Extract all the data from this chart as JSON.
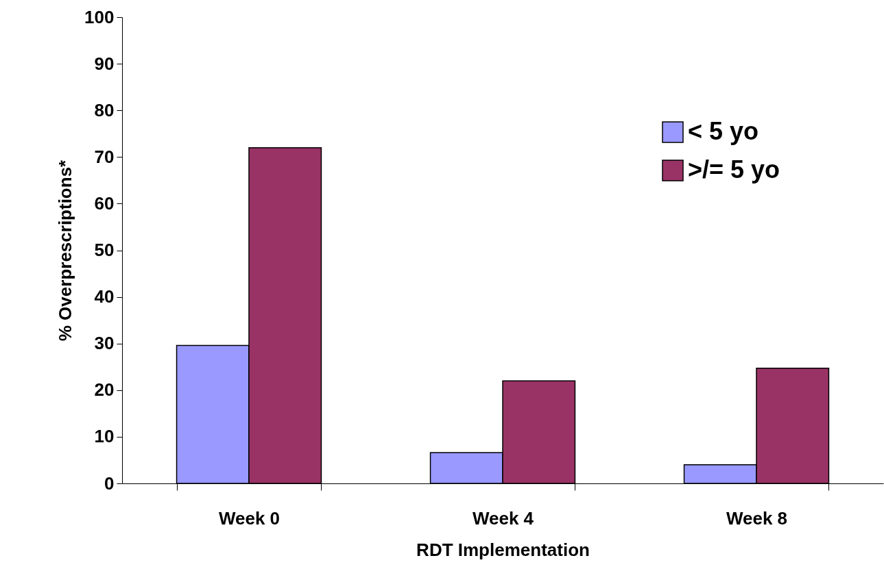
{
  "chart_data": {
    "type": "bar",
    "xlabel": "RDT Implementation",
    "ylabel": "% Overprescriptions*",
    "categories": [
      "Week 0",
      "Week 4",
      "Week 8"
    ],
    "series": [
      {
        "name": "< 5 yo",
        "color": "#9999ff",
        "values": [
          29.6,
          6.6,
          4.0
        ]
      },
      {
        "name": ">/= 5 yo",
        "color": "#993366",
        "values": [
          72.0,
          22.0,
          24.7
        ]
      }
    ],
    "ylim": [
      0,
      100
    ],
    "yticks": [
      0,
      10,
      20,
      30,
      40,
      50,
      60,
      70,
      80,
      90,
      100
    ],
    "grid": false,
    "legend": "top right"
  }
}
